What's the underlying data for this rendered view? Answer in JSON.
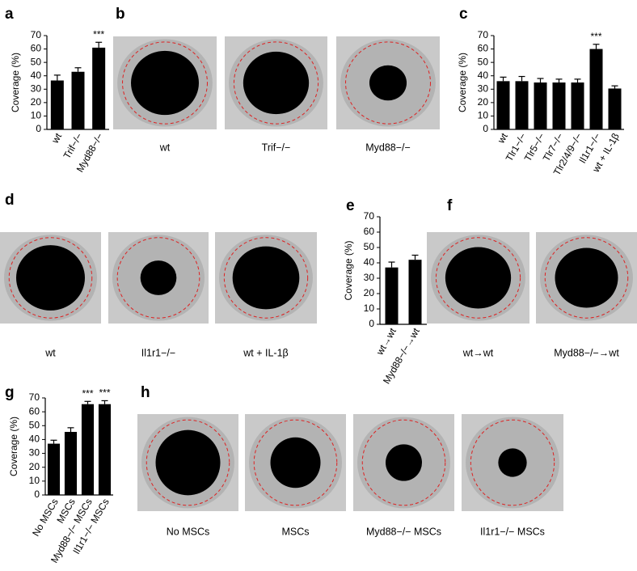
{
  "panel_letters": [
    "a",
    "b",
    "c",
    "d",
    "e",
    "f",
    "g",
    "h"
  ],
  "chart_data": [
    {
      "type": "bar",
      "y_label": "Coverage (%)",
      "categories": [
        "wt",
        "Trif−/−",
        "Myd88−/−"
      ],
      "values": [
        36.5,
        43,
        61
      ],
      "errors": [
        4,
        3,
        4
      ],
      "annotations": [
        null,
        null,
        "***"
      ],
      "color": "#000000",
      "ylim": [
        0,
        70
      ],
      "yticks": [
        0,
        10,
        20,
        30,
        40,
        50,
        60,
        70
      ]
    },
    {
      "type": "bar",
      "y_label": "Coverage (%)",
      "categories": [
        "wt",
        "Tlr1−/−",
        "Tlr5−/−",
        "Tlr7−/−",
        "Tlr2/4/9−/−",
        "Il1r1−/−",
        "wt + IL-1β"
      ],
      "values": [
        36,
        36,
        35,
        35,
        35,
        60,
        30.5
      ],
      "errors": [
        3,
        3.5,
        3,
        2.5,
        2.5,
        3.5,
        2
      ],
      "annotations": [
        null,
        null,
        null,
        null,
        null,
        "***",
        null
      ],
      "color": "#000000",
      "ylim": [
        0,
        70
      ],
      "yticks": [
        0,
        10,
        20,
        30,
        40,
        50,
        60,
        70
      ]
    },
    {
      "type": "bar",
      "y_label": "Coverage (%)",
      "categories": [
        "wt→wt",
        "Myd88−/−→wt"
      ],
      "values": [
        37,
        42
      ],
      "errors": [
        3.5,
        3
      ],
      "annotations": [
        null,
        null
      ],
      "color": "#000000",
      "ylim": [
        0,
        70
      ],
      "yticks": [
        0,
        10,
        20,
        30,
        40,
        50,
        60,
        70
      ]
    },
    {
      "type": "bar",
      "y_label": "Coverage (%)",
      "categories": [
        "No MSCs",
        "MSCs",
        "Myd88−/− MSCs",
        "Il1r1−/− MSCs"
      ],
      "values": [
        37,
        45.5,
        65.5,
        65.5
      ],
      "errors": [
        2.5,
        3,
        2,
        2.5
      ],
      "annotations": [
        null,
        null,
        "***",
        "***"
      ],
      "color": "#000000",
      "ylim": [
        0,
        70
      ],
      "yticks": [
        0,
        10,
        20,
        30,
        40,
        50,
        60,
        70
      ]
    }
  ],
  "image_panels": [
    {
      "captions": [
        "wt",
        "Trif−/−",
        "Myd88−/−"
      ]
    },
    {
      "captions": [
        "wt",
        "Il1r1−/−",
        "wt + IL-1β"
      ]
    },
    {
      "captions": [
        "wt→wt",
        "Myd88−/−→wt"
      ]
    },
    {
      "captions": [
        "No MSCs",
        "MSCs",
        "Myd88−/− MSCs",
        "Il1r1−/− MSCs"
      ]
    }
  ]
}
